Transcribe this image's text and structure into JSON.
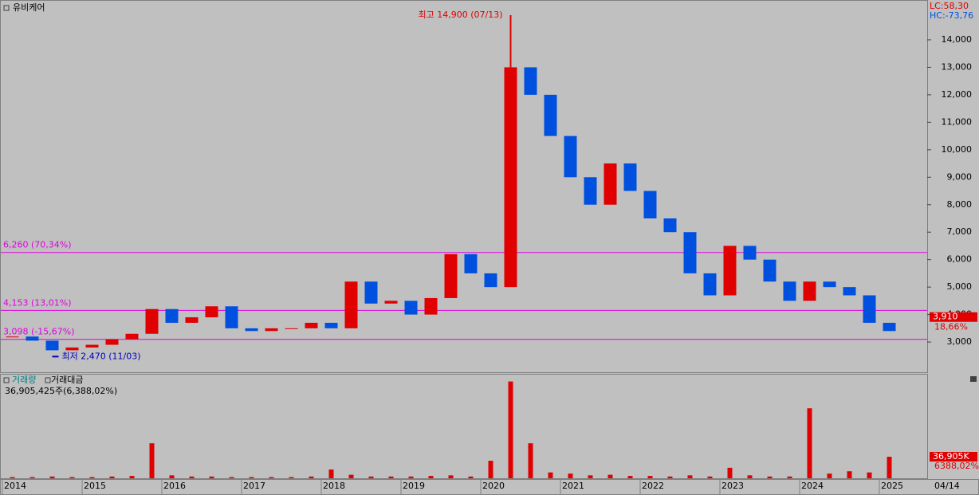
{
  "title": "유비케어",
  "lc": "LC:58,30",
  "hc": "HC:-73,76",
  "volume_legend": [
    "거래량",
    "거래대금"
  ],
  "volume_info": "36,905,425주(6,388,02%)",
  "date_label": "04/14",
  "chart_data": [
    {
      "type": "candlestick",
      "values": [
        3200,
        3050,
        2700,
        2800,
        2900,
        3100,
        3300,
        4200,
        3700,
        3900,
        4300,
        3500,
        3400,
        3500,
        3500,
        3700,
        3500,
        5200,
        4400,
        4500,
        4000,
        4600,
        6200,
        5500,
        5000,
        13000,
        12000,
        10500,
        9000,
        8000,
        9500,
        8500,
        7500,
        7000,
        5500,
        4700,
        6500,
        6000,
        5200,
        4500,
        5200,
        5000,
        4700,
        3700,
        3400
      ],
      "up_color": "#e00000",
      "down_color": "#0050e0",
      "ylim": [
        1900,
        15450
      ],
      "yticks": [
        {
          "value": 3000,
          "label": "3,000"
        },
        {
          "value": 4000,
          "label": "4,000"
        },
        {
          "value": 5000,
          "label": "5,000"
        },
        {
          "value": 6000,
          "label": "6,000"
        },
        {
          "value": 7000,
          "label": "7,000"
        },
        {
          "value": 8000,
          "label": "8,000"
        },
        {
          "value": 9000,
          "label": "9,000"
        },
        {
          "value": 10000,
          "label": "10,000"
        },
        {
          "value": 11000,
          "label": "11,000"
        },
        {
          "value": 12000,
          "label": "12,000"
        },
        {
          "value": 13000,
          "label": "13,000"
        },
        {
          "value": 14000,
          "label": "14,000"
        }
      ],
      "levels": [
        {
          "value": 6260,
          "label": "6,260 (70,34%)",
          "color": "#e000e0"
        },
        {
          "value": 4153,
          "label": "4,153 (13,01%)",
          "color": "#e000e0"
        },
        {
          "value": 3098,
          "label": "3,098 (-15,67%)",
          "color": "#e000e0"
        }
      ],
      "high": {
        "value": 14900,
        "label": "최고 14,900 (07/13)",
        "color": "#e00000"
      },
      "low": {
        "value": 2470,
        "label": "최저 2,470 (11/03)",
        "color": "#0000c0"
      },
      "current": {
        "value": 3910,
        "label": "3,910",
        "change": "18,66%"
      }
    },
    {
      "type": "bar",
      "categories": [
        "2014",
        null,
        null,
        null,
        "2015",
        null,
        null,
        null,
        "2016",
        null,
        null,
        null,
        "2017",
        null,
        null,
        null,
        "2018",
        null,
        null,
        null,
        "2019",
        null,
        null,
        null,
        "2020",
        null,
        null,
        null,
        "2021",
        null,
        null,
        null,
        "2022",
        null,
        null,
        null,
        "2023",
        null,
        null,
        null,
        "2024",
        null,
        null,
        null,
        "2025"
      ],
      "values": [
        2000,
        2000,
        3000,
        2000,
        2000,
        3000,
        4000,
        60000,
        5000,
        3000,
        3000,
        2000,
        2000,
        2000,
        2000,
        3000,
        15000,
        6000,
        3000,
        3000,
        3000,
        4000,
        5000,
        3000,
        30000,
        166000,
        60000,
        10000,
        8000,
        5000,
        6000,
        4000,
        4000,
        3000,
        5000,
        3000,
        18000,
        5000,
        3000,
        3000,
        120000,
        8000,
        12000,
        10000,
        36905
      ],
      "color": "#e00000",
      "ylim": [
        0,
        175000
      ],
      "current": {
        "value": 36905,
        "label": "36,905K",
        "change": "6388,02%"
      }
    }
  ]
}
